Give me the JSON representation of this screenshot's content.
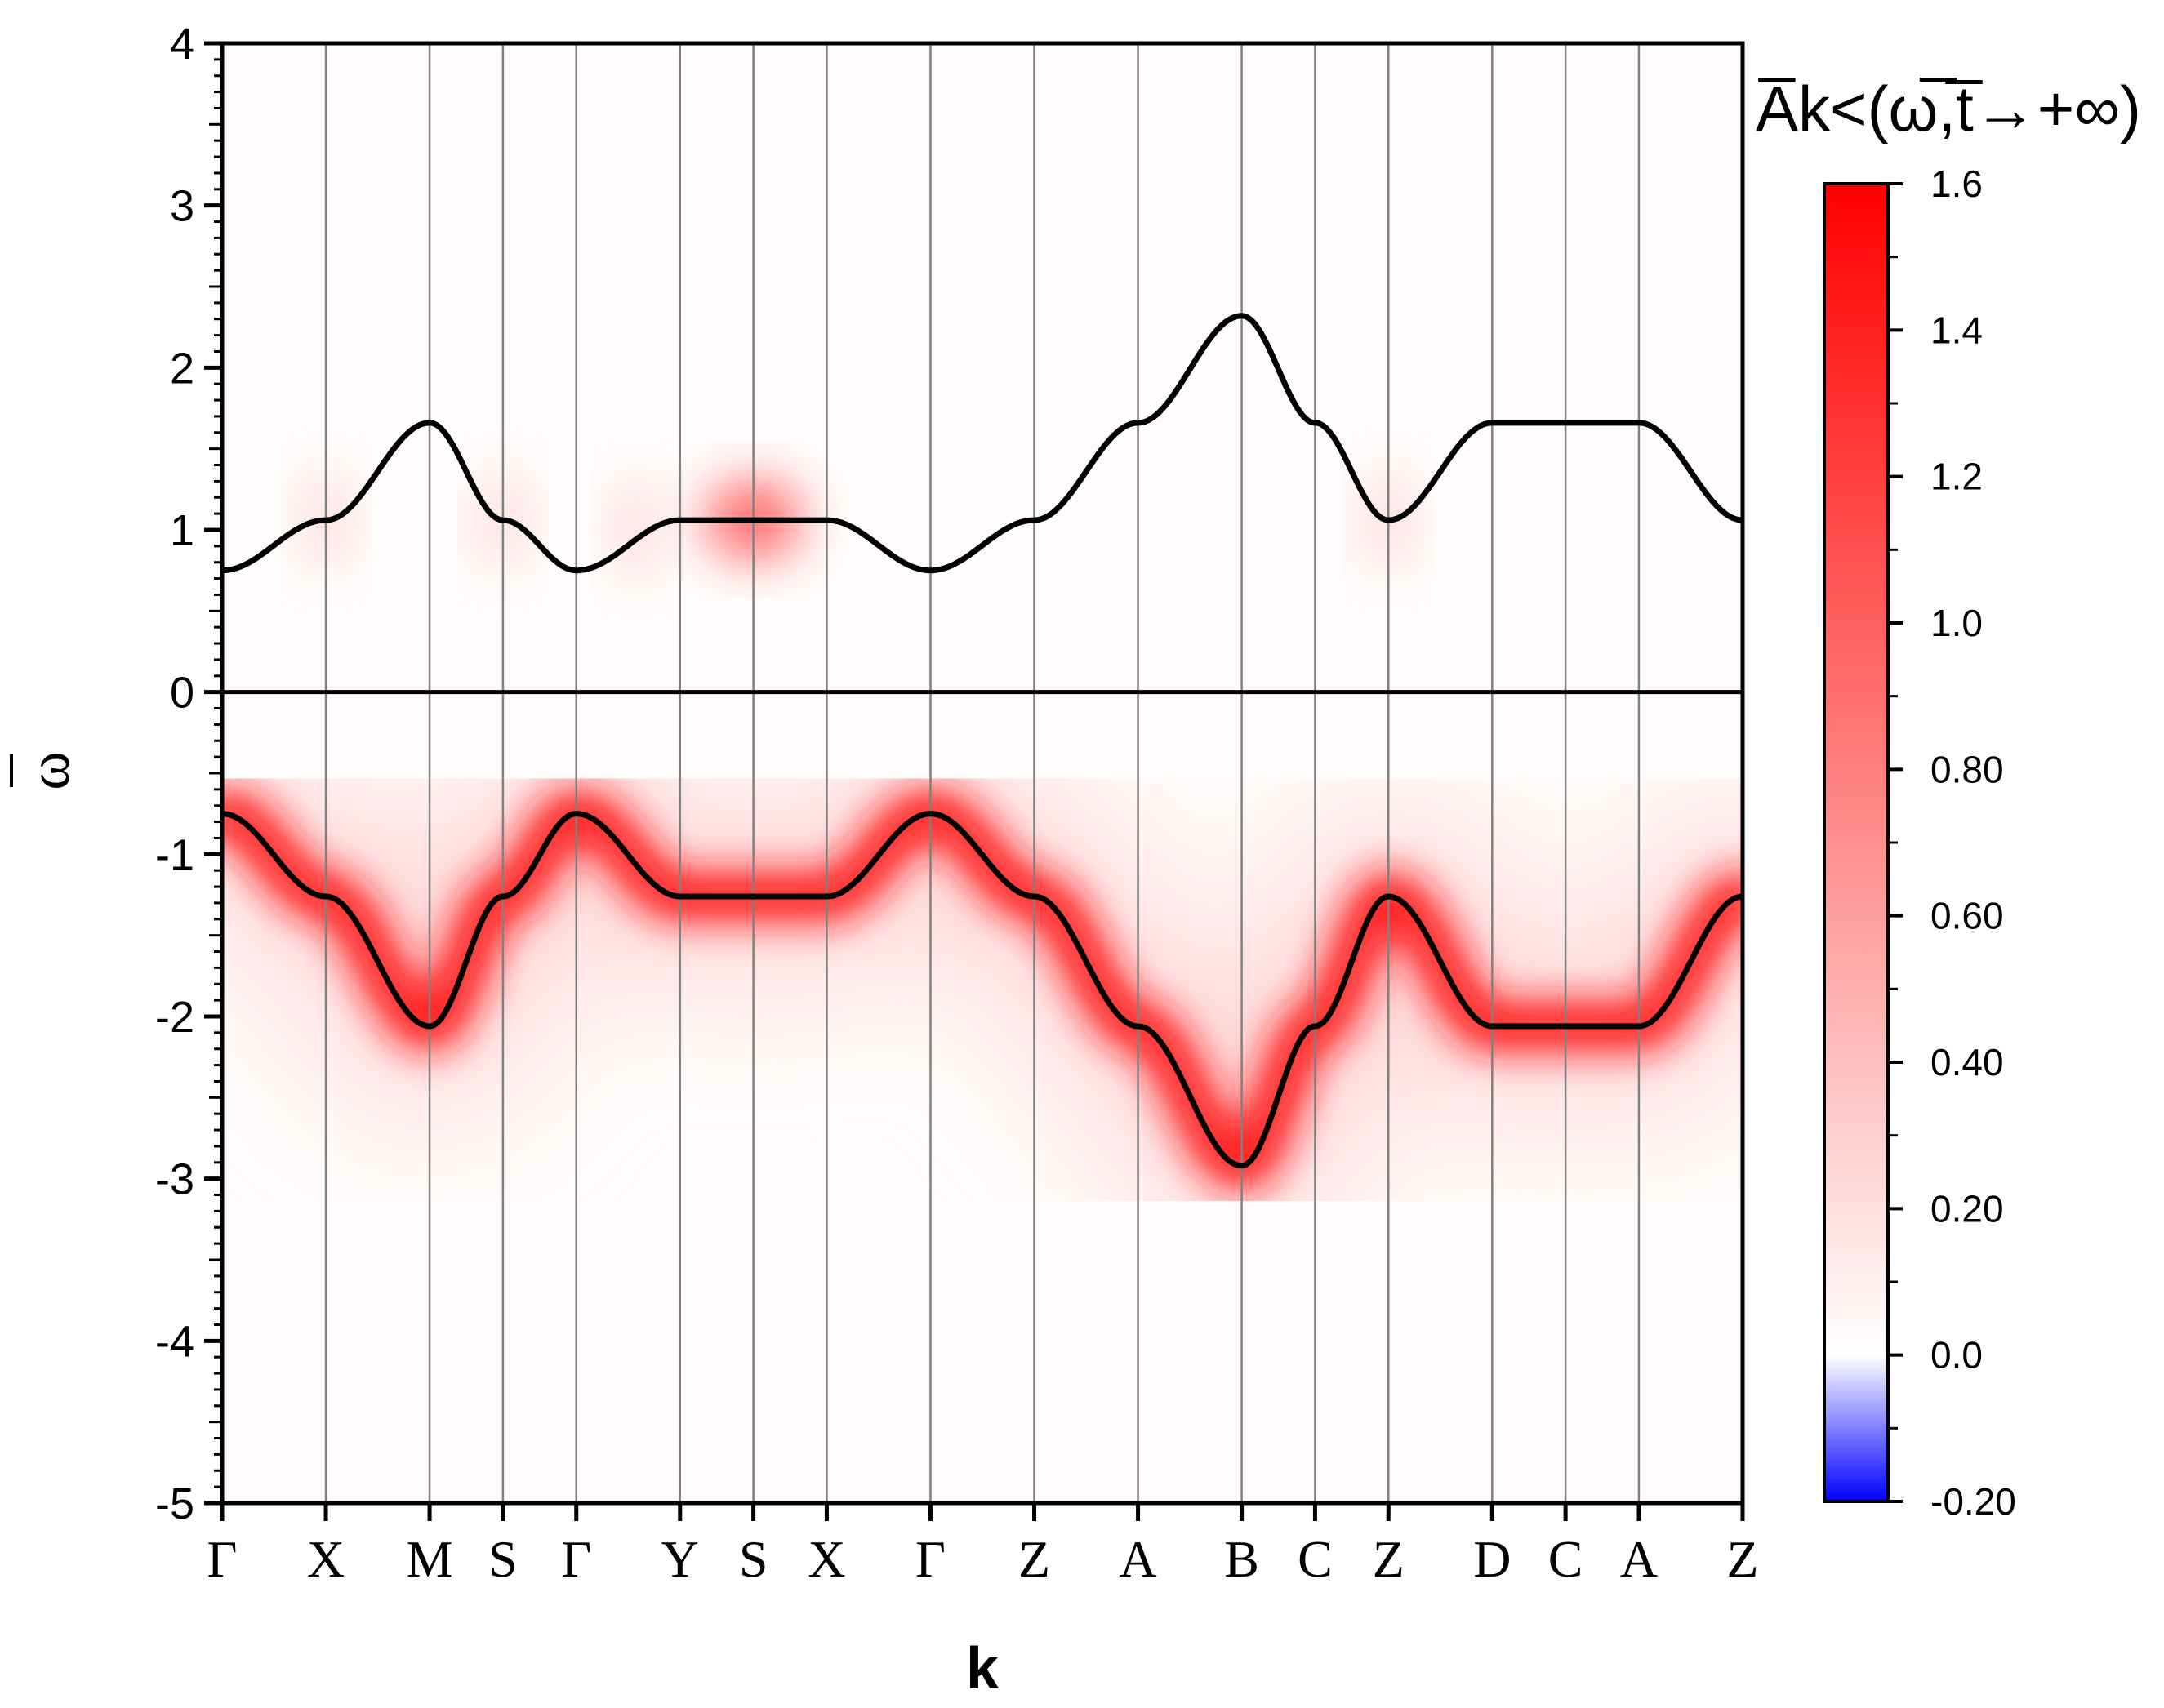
{
  "chart_data": {
    "type": "heatmap",
    "xlabel": "k",
    "ylabel": "ω",
    "ylim": [
      -5,
      4
    ],
    "yticks": [
      "4",
      "3",
      "2",
      "1",
      "0",
      "-1",
      "-2",
      "-3",
      "-4",
      "-5"
    ],
    "xticks": [
      {
        "label": "Γ",
        "k": 0
      },
      {
        "label": "X",
        "k": 1
      },
      {
        "label": "M",
        "k": 2
      },
      {
        "label": "S",
        "k": 2.7071
      },
      {
        "label": "Γ",
        "k": 3.4142
      },
      {
        "label": "Y",
        "k": 4.4142
      },
      {
        "label": "S",
        "k": 5.1213
      },
      {
        "label": "X",
        "k": 5.8284
      },
      {
        "label": "Γ",
        "k": 6.8284
      },
      {
        "label": "Z",
        "k": 7.8284
      },
      {
        "label": "A",
        "k": 8.8284
      },
      {
        "label": "B",
        "k": 9.8284
      },
      {
        "label": "C",
        "k": 10.5355
      },
      {
        "label": "Z",
        "k": 11.2426
      },
      {
        "label": "D",
        "k": 12.2426
      },
      {
        "label": "C",
        "k": 12.9497
      },
      {
        "label": "A",
        "k": 13.6568
      },
      {
        "label": "Z",
        "k": 14.6568
      }
    ],
    "series": [
      {
        "name": "",
        "values": [
          {
            "k": 0,
            "w": 0.75
          },
          {
            "k": 1,
            "w": 1.06
          },
          {
            "k": 2,
            "w": 1.66
          },
          {
            "k": 2.7071,
            "w": 1.06
          },
          {
            "k": 3.4142,
            "w": 0.75
          },
          {
            "k": 4.4142,
            "w": 1.06
          },
          {
            "k": 5.1213,
            "w": 1.06
          },
          {
            "k": 5.8284,
            "w": 1.06
          },
          {
            "k": 6.8284,
            "w": 0.75
          },
          {
            "k": 7.8284,
            "w": 1.06
          },
          {
            "k": 8.8284,
            "w": 1.66
          },
          {
            "k": 9.8284,
            "w": 2.32
          },
          {
            "k": 10.5355,
            "w": 1.66
          },
          {
            "k": 11.2426,
            "w": 1.06
          },
          {
            "k": 12.2426,
            "w": 1.66
          },
          {
            "k": 12.9497,
            "w": 1.66
          },
          {
            "k": 13.6568,
            "w": 1.66
          },
          {
            "k": 14.6568,
            "w": 1.06
          }
        ]
      },
      {
        "name": "",
        "values": [
          {
            "k": 0,
            "w": -0.75
          },
          {
            "k": 1,
            "w": -1.26
          },
          {
            "k": 2,
            "w": -2.06
          },
          {
            "k": 2.7071,
            "w": -1.26
          },
          {
            "k": 3.4142,
            "w": -0.75
          },
          {
            "k": 4.4142,
            "w": -1.26
          },
          {
            "k": 5.1213,
            "w": -1.26
          },
          {
            "k": 5.8284,
            "w": -1.26
          },
          {
            "k": 6.8284,
            "w": -0.75
          },
          {
            "k": 7.8284,
            "w": -1.26
          },
          {
            "k": 8.8284,
            "w": -2.06
          },
          {
            "k": 9.8284,
            "w": -2.92
          },
          {
            "k": 10.5355,
            "w": -2.06
          },
          {
            "k": 11.2426,
            "w": -1.26
          },
          {
            "k": 12.2426,
            "w": -2.06
          },
          {
            "k": 12.9497,
            "w": -2.06
          },
          {
            "k": 13.6568,
            "w": -2.06
          },
          {
            "k": 14.6568,
            "w": -1.26
          }
        ]
      }
    ],
    "zero_line": 0,
    "grid": "vertical lines at high-symmetry points",
    "colorbar": {
      "range": [
        -0.2,
        1.6
      ],
      "ticks": [
        "1.6",
        "1.4",
        "1.2",
        "1.0",
        "0.80",
        "0.60",
        "0.40",
        "0.20",
        "0.0",
        "-0.20"
      ],
      "colors": {
        "low": "#0000ff",
        "zero": "#ffffff",
        "high": "#ff0000"
      }
    },
    "colorbar_title": "A̅k<(ω̅,t̅→+∞)"
  }
}
